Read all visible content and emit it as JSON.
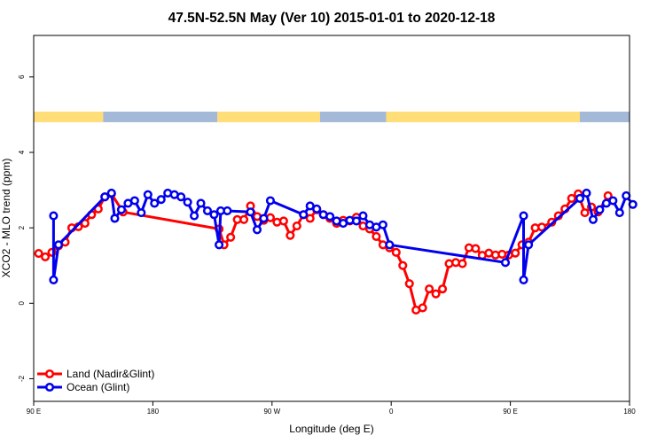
{
  "chart_data": {
    "type": "line",
    "title": "47.5N-52.5N May (Ver 10)   2015-01-01 to 2020-12-18",
    "xlabel": "Longitude (deg E)",
    "ylabel": "XCO2 - MLO trend (ppm)",
    "xlim": [
      90,
      450
    ],
    "ylim": [
      -2.6,
      7.1
    ],
    "x_ticks": [
      {
        "value": 90,
        "label": "90 E"
      },
      {
        "value": 162,
        "label": "180"
      },
      {
        "value": 234,
        "label": "90 W"
      },
      {
        "value": 306,
        "label": "0"
      },
      {
        "value": 378,
        "label": "90 E"
      },
      {
        "value": 450,
        "label": "180"
      }
    ],
    "y_ticks": [
      {
        "value": -2,
        "label": "-2"
      },
      {
        "value": 0,
        "label": "0"
      },
      {
        "value": 2,
        "label": "2"
      },
      {
        "value": 4,
        "label": "4"
      },
      {
        "value": 6,
        "label": "6"
      }
    ],
    "land_ocean_mask": {
      "y_range": [
        4.8,
        5.08
      ],
      "land_color": "#FFDD77",
      "ocean_color": "#A4B8D8",
      "segments": [
        {
          "type": "land",
          "start": 90,
          "end": 132
        },
        {
          "type": "ocean",
          "start": 132,
          "end": 201
        },
        {
          "type": "land",
          "start": 201,
          "end": 263
        },
        {
          "type": "ocean",
          "start": 263,
          "end": 303
        },
        {
          "type": "land",
          "start": 303,
          "end": 420
        },
        {
          "type": "ocean",
          "start": 420,
          "end": 450
        }
      ]
    },
    "legend": {
      "position": "bottom-left"
    },
    "grid": false,
    "series": [
      {
        "name": "Land (Nadir&Glint)",
        "color": "#FF0000",
        "x": [
          93,
          97,
          101,
          105,
          109,
          113,
          117,
          121,
          125,
          129,
          133,
          137,
          144,
          202,
          205,
          209,
          213,
          217,
          221,
          225,
          229,
          233,
          237,
          241,
          245,
          249,
          253,
          257,
          261,
          265,
          269,
          273,
          277,
          281,
          285,
          289,
          293,
          297,
          301,
          305,
          309,
          313,
          317,
          321,
          325,
          329,
          333,
          337,
          341,
          345,
          349,
          353,
          357,
          361,
          365,
          369,
          373,
          377,
          381,
          385,
          389,
          393,
          397,
          403,
          407,
          411,
          415,
          419,
          423,
          427,
          431,
          437
        ],
        "y": [
          1.32,
          1.23,
          1.35,
          1.52,
          1.62,
          2.0,
          2.03,
          2.12,
          2.35,
          2.5,
          2.82,
          2.9,
          2.42,
          1.97,
          1.55,
          1.75,
          2.22,
          2.22,
          2.58,
          2.3,
          2.2,
          2.27,
          2.15,
          2.18,
          1.8,
          2.05,
          2.35,
          2.25,
          2.48,
          2.35,
          2.25,
          2.12,
          2.2,
          2.18,
          2.28,
          2.05,
          1.97,
          1.77,
          1.55,
          1.47,
          1.35,
          1.0,
          0.52,
          -0.18,
          -0.12,
          0.38,
          0.25,
          0.38,
          1.05,
          1.08,
          1.05,
          1.47,
          1.45,
          1.27,
          1.33,
          1.28,
          1.3,
          1.28,
          1.33,
          1.55,
          1.62,
          2.0,
          2.02,
          2.15,
          2.32,
          2.5,
          2.78,
          2.9,
          2.4,
          2.55,
          2.42,
          2.85
        ]
      },
      {
        "name": "Ocean (Glint)",
        "color": "#0000EE",
        "x": [
          102,
          102,
          105,
          133,
          137,
          139,
          143,
          147,
          151,
          155,
          159,
          163,
          167,
          171,
          175,
          179,
          183,
          187,
          191,
          195,
          199,
          202,
          203,
          207,
          221,
          225,
          229,
          233,
          253,
          257,
          261,
          265,
          269,
          273,
          277,
          281,
          285,
          289,
          293,
          297,
          301,
          305,
          375,
          386,
          386,
          389,
          420,
          424,
          428,
          432,
          436,
          440,
          444,
          448,
          452
        ],
        "y": [
          2.32,
          0.62,
          1.55,
          2.82,
          2.92,
          2.25,
          2.48,
          2.65,
          2.72,
          2.4,
          2.88,
          2.65,
          2.75,
          2.92,
          2.88,
          2.82,
          2.68,
          2.32,
          2.65,
          2.45,
          2.35,
          1.55,
          2.45,
          2.45,
          2.42,
          1.95,
          2.25,
          2.72,
          2.35,
          2.58,
          2.5,
          2.35,
          2.3,
          2.18,
          2.12,
          2.2,
          2.18,
          2.32,
          2.08,
          2.02,
          2.08,
          1.55,
          1.08,
          2.32,
          0.62,
          1.55,
          2.78,
          2.92,
          2.22,
          2.48,
          2.65,
          2.72,
          2.4,
          2.85,
          2.62
        ]
      }
    ]
  }
}
